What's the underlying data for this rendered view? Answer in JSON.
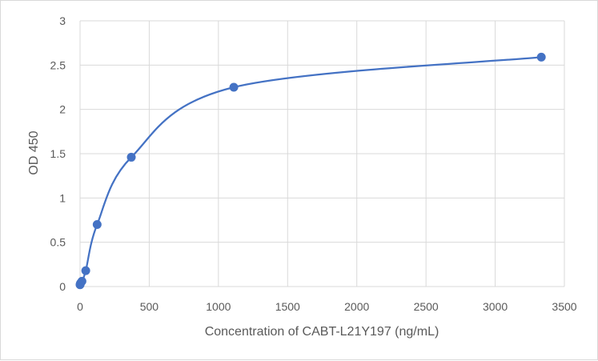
{
  "chart_data": {
    "type": "scatter",
    "title": "",
    "xlabel": "Concentration of CABT-L21Y197 (ng/mL)",
    "ylabel": "OD 450",
    "xlim": [
      0,
      3500
    ],
    "ylim": [
      0,
      3
    ],
    "xticks": [
      0,
      500,
      1000,
      1500,
      2000,
      2500,
      3000,
      3500
    ],
    "yticks": [
      0,
      0.5,
      1,
      1.5,
      2,
      2.5,
      3
    ],
    "grid": true,
    "legend": "none",
    "smooth_line": true,
    "color": "#4472c4",
    "series": [
      {
        "x": [
          0,
          1.5,
          4.6,
          13.7,
          41.2,
          123.5,
          370.4,
          1111.1,
          3333.3
        ],
        "y": [
          0.02,
          0.03,
          0.04,
          0.06,
          0.18,
          0.7,
          1.46,
          2.25,
          2.59
        ]
      }
    ]
  }
}
